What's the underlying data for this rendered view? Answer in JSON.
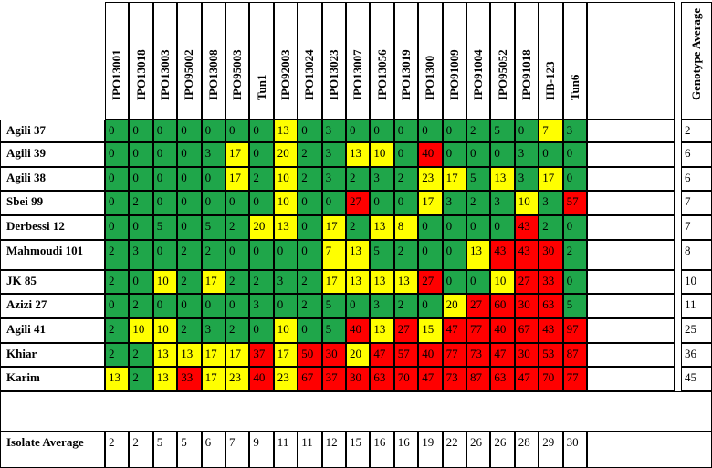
{
  "colors": {
    "low": "#1fa64a",
    "mid": "#ffff00",
    "high": "#ff0000"
  },
  "isolates": [
    "IPO13001",
    "IPO13018",
    "IPO13003",
    "IPO95002",
    "IPO13008",
    "IPO95003",
    "Tun1",
    "IPO92003",
    "IPO13024",
    "IPO13023",
    "IPO13007",
    "IPO13056",
    "IPO13019",
    "IPO1300",
    "IPO91009",
    "IPO91004",
    "IPO95052",
    "IPO91018",
    "IIB-123",
    "Tun6"
  ],
  "genotype_average_label": "Genotype Average",
  "isolate_average_label": "Isolate Average",
  "rows": [
    {
      "name": "Agili 37",
      "values": [
        "0",
        "0",
        "0",
        "0",
        "0",
        "0",
        "0",
        "13",
        "0",
        "3",
        "0",
        "0",
        "0",
        "0",
        "0",
        "2",
        "5",
        "0",
        "7",
        "3"
      ],
      "classes": [
        "g",
        "g",
        "g",
        "g",
        "g",
        "g",
        "g",
        "y",
        "g",
        "g",
        "g",
        "g",
        "g",
        "g",
        "g",
        "g",
        "g",
        "g",
        "y",
        "g"
      ],
      "avg": "2"
    },
    {
      "name": "Agili 39",
      "values": [
        "0",
        "0",
        "0",
        "0",
        "3",
        "17",
        "0",
        "20",
        "2",
        "3",
        "13",
        "10",
        "0",
        "40",
        "0",
        "0",
        "0",
        "3",
        "0",
        "0"
      ],
      "classes": [
        "g",
        "g",
        "g",
        "g",
        "g",
        "y",
        "g",
        "y",
        "g",
        "g",
        "y",
        "y",
        "g",
        "r",
        "g",
        "g",
        "g",
        "g",
        "g",
        "g"
      ],
      "avg": "6"
    },
    {
      "name": "Agili 38",
      "values": [
        "0",
        "0",
        "0",
        "0",
        "0",
        "17",
        "2",
        "10",
        "2",
        "3",
        "2",
        "3",
        "2",
        "23",
        "17",
        "5",
        "13",
        "3",
        "17",
        "0"
      ],
      "classes": [
        "g",
        "g",
        "g",
        "g",
        "g",
        "y",
        "g",
        "y",
        "g",
        "g",
        "g",
        "g",
        "g",
        "y",
        "y",
        "g",
        "y",
        "g",
        "y",
        "g"
      ],
      "avg": "6"
    },
    {
      "name": "Sbei 99",
      "values": [
        "0",
        "2",
        "0",
        "0",
        "0",
        "0",
        "0",
        "10",
        "0",
        "0",
        "27",
        "0",
        "0",
        "17",
        "3",
        "2",
        "3",
        "10",
        "3",
        "57"
      ],
      "classes": [
        "g",
        "g",
        "g",
        "g",
        "g",
        "g",
        "g",
        "y",
        "g",
        "g",
        "r",
        "g",
        "g",
        "y",
        "g",
        "g",
        "g",
        "y",
        "g",
        "r"
      ],
      "avg": "7"
    },
    {
      "name": "Derbessi 12",
      "values": [
        "0",
        "0",
        "5",
        "0",
        "5",
        "2",
        "20",
        "13",
        "0",
        "17",
        "2",
        "13",
        "8",
        "0",
        "0",
        "0",
        "0",
        "43",
        "2",
        "0"
      ],
      "classes": [
        "g",
        "g",
        "g",
        "g",
        "g",
        "g",
        "y",
        "y",
        "g",
        "y",
        "g",
        "y",
        "y",
        "g",
        "g",
        "g",
        "g",
        "r",
        "g",
        "g"
      ],
      "avg": "7"
    },
    {
      "name": "Mahmoudi 101",
      "values": [
        "2",
        "3",
        "0",
        "2",
        "2",
        "0",
        "0",
        "0",
        "0",
        "7",
        "13",
        "5",
        "2",
        "0",
        "0",
        "13",
        "43",
        "43",
        "30",
        "2"
      ],
      "classes": [
        "g",
        "g",
        "g",
        "g",
        "g",
        "g",
        "g",
        "g",
        "g",
        "y",
        "y",
        "g",
        "g",
        "g",
        "g",
        "y",
        "r",
        "r",
        "r",
        "g"
      ],
      "avg": "8"
    },
    {
      "name": "JK 85",
      "values": [
        "2",
        "0",
        "10",
        "2",
        "17",
        "2",
        "2",
        "3",
        "2",
        "17",
        "13",
        "13",
        "13",
        "27",
        "0",
        "0",
        "10",
        "27",
        "33",
        "0"
      ],
      "classes": [
        "g",
        "g",
        "y",
        "g",
        "y",
        "g",
        "g",
        "g",
        "g",
        "y",
        "y",
        "y",
        "y",
        "r",
        "g",
        "g",
        "y",
        "r",
        "r",
        "g"
      ],
      "avg": "10"
    },
    {
      "name": "Azizi 27",
      "values": [
        "0",
        "2",
        "0",
        "0",
        "0",
        "0",
        "3",
        "0",
        "2",
        "5",
        "0",
        "3",
        "2",
        "0",
        "20",
        "27",
        "60",
        "30",
        "63",
        "5"
      ],
      "classes": [
        "g",
        "g",
        "g",
        "g",
        "g",
        "g",
        "g",
        "g",
        "g",
        "g",
        "g",
        "g",
        "g",
        "g",
        "y",
        "r",
        "r",
        "r",
        "r",
        "g"
      ],
      "avg": "11"
    },
    {
      "name": "Agili 41",
      "values": [
        "2",
        "10",
        "10",
        "2",
        "3",
        "2",
        "0",
        "10",
        "0",
        "5",
        "40",
        "13",
        "27",
        "15",
        "47",
        "77",
        "40",
        "67",
        "43",
        "97"
      ],
      "classes": [
        "g",
        "y",
        "y",
        "g",
        "g",
        "g",
        "g",
        "y",
        "g",
        "g",
        "r",
        "y",
        "r",
        "y",
        "r",
        "r",
        "r",
        "r",
        "r",
        "r"
      ],
      "avg": "25"
    },
    {
      "name": "Khiar",
      "values": [
        "2",
        "2",
        "13",
        "13",
        "17",
        "17",
        "37",
        "17",
        "50",
        "30",
        "20",
        "47",
        "57",
        "40",
        "77",
        "73",
        "47",
        "30",
        "53",
        "87"
      ],
      "classes": [
        "g",
        "g",
        "y",
        "y",
        "y",
        "y",
        "r",
        "y",
        "r",
        "r",
        "y",
        "r",
        "r",
        "r",
        "r",
        "r",
        "r",
        "r",
        "r",
        "r"
      ],
      "avg": "36"
    },
    {
      "name": "Karim",
      "values": [
        "13",
        "2",
        "13",
        "33",
        "17",
        "23",
        "40",
        "23",
        "67",
        "37",
        "30",
        "63",
        "70",
        "47",
        "73",
        "87",
        "63",
        "47",
        "70",
        "77"
      ],
      "classes": [
        "y",
        "g",
        "y",
        "r",
        "y",
        "y",
        "r",
        "y",
        "r",
        "r",
        "r",
        "r",
        "r",
        "r",
        "r",
        "r",
        "r",
        "r",
        "r",
        "r"
      ],
      "avg": "45"
    }
  ],
  "isolate_averages": [
    "2",
    "2",
    "5",
    "5",
    "6",
    "7",
    "9",
    "11",
    "11",
    "12",
    "15",
    "16",
    "16",
    "19",
    "22",
    "26",
    "26",
    "28",
    "29",
    "30"
  ]
}
